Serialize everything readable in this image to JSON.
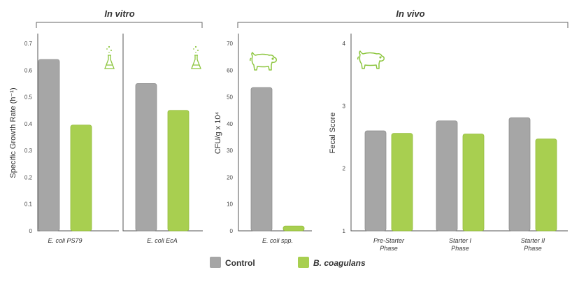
{
  "groups": {
    "in_vitro": "In vitro",
    "in_vivo": "In vivo"
  },
  "legend": [
    {
      "label": "Control",
      "color": "#a6a6a6"
    },
    {
      "label": "B. coagulans",
      "color": "#a8cf50"
    }
  ],
  "colors": {
    "control": "#a6a6a6",
    "treatment": "#a8cf50",
    "icon": "#8dc63f"
  },
  "icons": [
    "flask-icon",
    "flask-icon",
    "pig-icon",
    "pig-icon"
  ],
  "chart_data": [
    {
      "type": "bar",
      "ylabel": "Specific Growth Rate (h⁻¹)",
      "ylim": [
        0,
        0.7
      ],
      "yticks": [
        "0",
        "0.1",
        "0.2",
        "0.3",
        "0.4",
        "0.5",
        "0.6",
        "0.7"
      ],
      "categories": [
        "E. coli PS79"
      ],
      "series": [
        {
          "name": "Control",
          "values": [
            0.64
          ]
        },
        {
          "name": "B. coagulans",
          "values": [
            0.395
          ]
        }
      ]
    },
    {
      "type": "bar",
      "ylim": [
        0,
        0.7
      ],
      "categories": [
        "E. coli EcA"
      ],
      "series": [
        {
          "name": "Control",
          "values": [
            0.55
          ]
        },
        {
          "name": "B. coagulans",
          "values": [
            0.45
          ]
        }
      ]
    },
    {
      "type": "bar",
      "ylabel": "CFU/g x 10⁴",
      "ylim": [
        0,
        70
      ],
      "yticks": [
        "0",
        "10",
        "20",
        "30",
        "40",
        "50",
        "60",
        "70"
      ],
      "categories": [
        "E. coli spp."
      ],
      "series": [
        {
          "name": "Control",
          "values": [
            53.5
          ]
        },
        {
          "name": "B. coagulans",
          "values": [
            1.8
          ]
        }
      ]
    },
    {
      "type": "bar",
      "ylabel": "Fecal Score",
      "ylim": [
        1,
        4
      ],
      "yticks": [
        "1",
        "2",
        "3",
        "4"
      ],
      "categories": [
        [
          "Pre-Starter",
          "Phase"
        ],
        [
          "Starter I",
          "Phase"
        ],
        [
          "Starter II",
          "Phase"
        ]
      ],
      "series": [
        {
          "name": "Control",
          "values": [
            2.6,
            2.76,
            2.81
          ]
        },
        {
          "name": "B. coagulans",
          "values": [
            2.56,
            2.55,
            2.47
          ]
        }
      ]
    }
  ]
}
